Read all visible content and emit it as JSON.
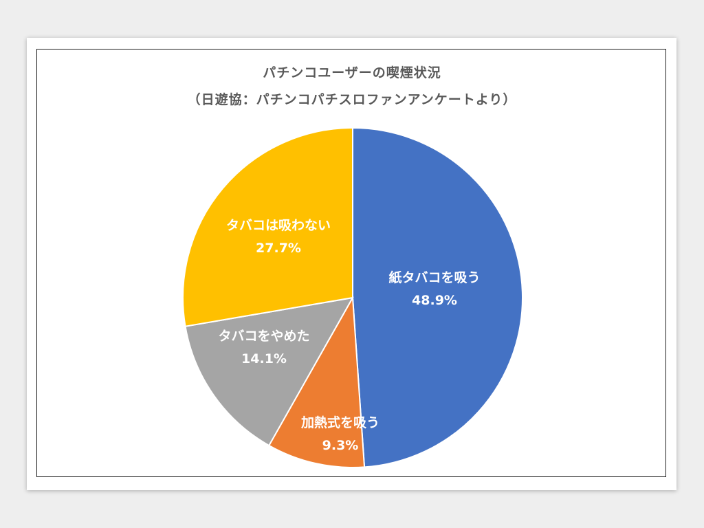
{
  "chart_data": {
    "type": "pie",
    "title": "パチンコユーザーの喫煙状況",
    "subtitle": "（日遊協：パチンコパチスロファンアンケートより）",
    "slices": [
      {
        "label": "紙タバコを吸う",
        "value": 48.9,
        "value_label": "48.9%",
        "color": "#4472C4"
      },
      {
        "label": "加熱式を吸う",
        "value": 9.3,
        "value_label": "9.3%",
        "color": "#ED7D31"
      },
      {
        "label": "タバコをやめた",
        "value": 14.1,
        "value_label": "14.1%",
        "color": "#A5A5A5"
      },
      {
        "label": "タバコは吸わない",
        "value": 27.7,
        "value_label": "27.7%",
        "color": "#FFC000"
      }
    ],
    "start": "12 o'clock",
    "direction": "clockwise",
    "legend": "none",
    "data_labels": "inside"
  }
}
